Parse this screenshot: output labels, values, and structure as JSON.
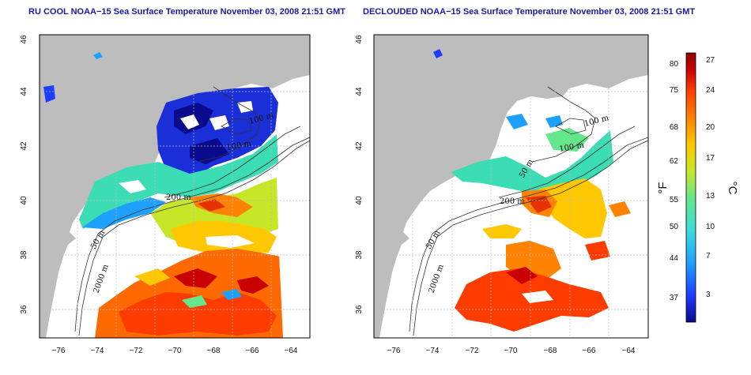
{
  "panels": [
    {
      "title": "RU COOL NOAA−15 Sea Surface Temperature November 03, 2008 21:51 GMT",
      "contour_labels": [
        "100 m",
        "100 m",
        "200 m",
        "50 m",
        "2000 m"
      ]
    },
    {
      "title": "DECLOUDED NOAA−15 Sea Surface Temperature November 03, 2008 21:51 GMT",
      "contour_labels": [
        "100 m",
        "100 m",
        "50 m",
        "200 m",
        "50 m",
        "2000 m"
      ]
    }
  ],
  "axes": {
    "x_ticks": [
      "−76",
      "−74",
      "−72",
      "−70",
      "−68",
      "−66",
      "−64"
    ],
    "y_ticks": [
      "46",
      "44",
      "42",
      "40",
      "38",
      "36"
    ]
  },
  "colorbar": {
    "fahrenheit_ticks": [
      "80",
      "75",
      "68",
      "62",
      "55",
      "50",
      "44",
      "37"
    ],
    "celsius_ticks": [
      "27",
      "24",
      "20",
      "17",
      "13",
      "10",
      "7",
      "3"
    ],
    "fahrenheit_unit": "°F",
    "celsius_unit": "°C",
    "colors": [
      "#0a0a8c",
      "#1c3cff",
      "#1ea0ff",
      "#3cdcdc",
      "#64e68c",
      "#c8e628",
      "#ffc800",
      "#ff8200",
      "#ff3c00",
      "#c80000",
      "#8c0000"
    ]
  },
  "colors": {
    "land": "#bdbdbd",
    "ocean": "#ffffff",
    "grid": "#bbbbbb",
    "title": "#1a1aa0"
  }
}
